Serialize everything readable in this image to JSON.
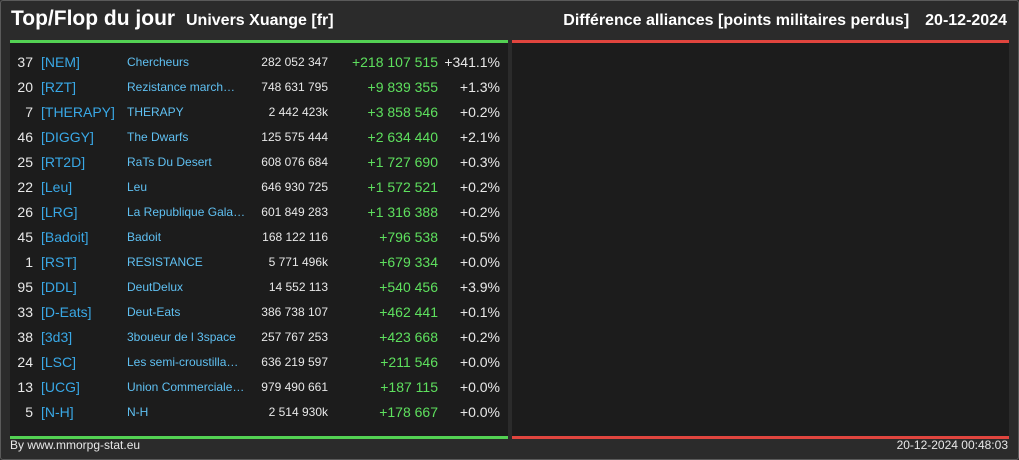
{
  "header": {
    "title": "Top/Flop du jour",
    "universe": "Univers Xuange [fr]",
    "category": "Différence alliances [points militaires perdus]",
    "date": "20-12-2024"
  },
  "colors": {
    "top_accent": "#53d153",
    "flop_accent": "#e0453e",
    "tag": "#39a8e6",
    "name": "#5fc0f2",
    "positive": "#5ee05e"
  },
  "top": [
    {
      "rank": "37",
      "tag": "[NEM]",
      "name": "Chercheurs",
      "points": "282 052 347",
      "diff": "+218 107 515",
      "pct": "+341.1%"
    },
    {
      "rank": "20",
      "tag": "[RZT]",
      "name": "Rezistance march…",
      "points": "748 631 795",
      "diff": "+9 839 355",
      "pct": "+1.3%"
    },
    {
      "rank": "7",
      "tag": "[THERAPY]",
      "name": "THERAPY",
      "points": "2 442 423k",
      "diff": "+3 858 546",
      "pct": "+0.2%"
    },
    {
      "rank": "46",
      "tag": "[DIGGY]",
      "name": "The Dwarfs",
      "points": "125 575 444",
      "diff": "+2 634 440",
      "pct": "+2.1%"
    },
    {
      "rank": "25",
      "tag": "[RT2D]",
      "name": "RaTs Du Desert",
      "points": "608 076 684",
      "diff": "+1 727 690",
      "pct": "+0.3%"
    },
    {
      "rank": "22",
      "tag": "[Leu]",
      "name": "Leu",
      "points": "646 930 725",
      "diff": "+1 572 521",
      "pct": "+0.2%"
    },
    {
      "rank": "26",
      "tag": "[LRG]",
      "name": "La Republique Gala…",
      "points": "601 849 283",
      "diff": "+1 316 388",
      "pct": "+0.2%"
    },
    {
      "rank": "45",
      "tag": "[Badoit]",
      "name": "Badoit",
      "points": "168 122 116",
      "diff": "+796 538",
      "pct": "+0.5%"
    },
    {
      "rank": "1",
      "tag": "[RST]",
      "name": "RESISTANCE",
      "points": "5 771 496k",
      "diff": "+679 334",
      "pct": "+0.0%"
    },
    {
      "rank": "95",
      "tag": "[DDL]",
      "name": "DeutDelux",
      "points": "14 552 113",
      "diff": "+540 456",
      "pct": "+3.9%"
    },
    {
      "rank": "33",
      "tag": "[D-Eats]",
      "name": "Deut-Eats",
      "points": "386 738 107",
      "diff": "+462 441",
      "pct": "+0.1%"
    },
    {
      "rank": "38",
      "tag": "[3d3]",
      "name": "3boueur de l 3space",
      "points": "257 767 253",
      "diff": "+423 668",
      "pct": "+0.2%"
    },
    {
      "rank": "24",
      "tag": "[LSC]",
      "name": "Les semi-croustilla…",
      "points": "636 219 597",
      "diff": "+211 546",
      "pct": "+0.0%"
    },
    {
      "rank": "13",
      "tag": "[UCG]",
      "name": "Union Commerciale…",
      "points": "979 490 661",
      "diff": "+187 115",
      "pct": "+0.0%"
    },
    {
      "rank": "5",
      "tag": "[N-H]",
      "name": "N-H",
      "points": "2 514 930k",
      "diff": "+178 667",
      "pct": "+0.0%"
    }
  ],
  "footer": {
    "credit": "By www.mmorpg-stat.eu",
    "timestamp": "20-12-2024 00:48:03"
  }
}
